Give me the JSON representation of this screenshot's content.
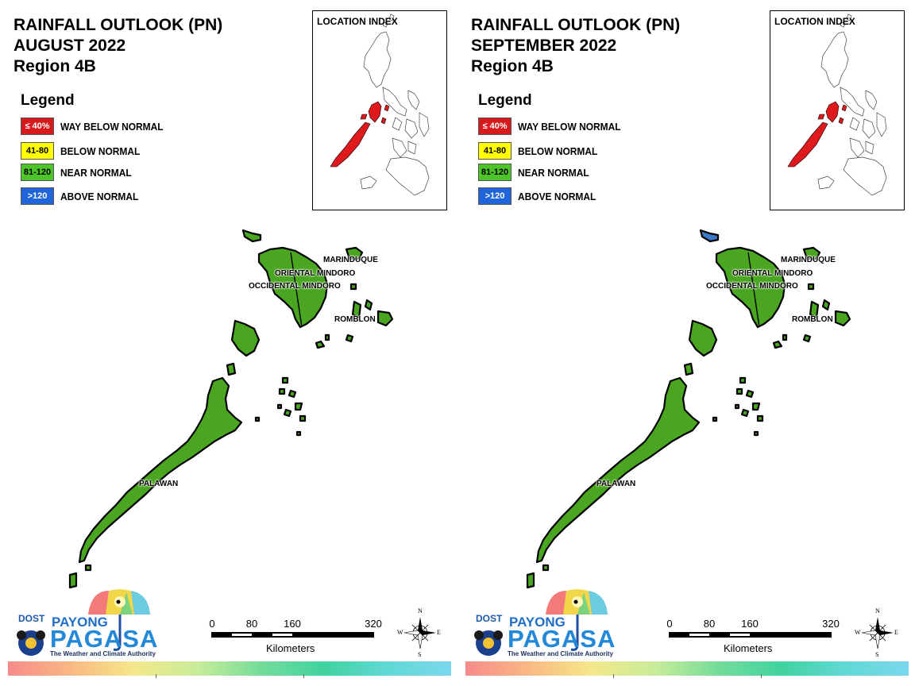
{
  "panels": [
    {
      "title_lines": [
        "RAINFALL OUTLOOK (PN)",
        "AUGUST 2022",
        "Region 4B"
      ],
      "legend": {
        "title": "Legend",
        "items": [
          {
            "swatch": "≤ 40%",
            "label": "WAY BELOW NORMAL",
            "color": "#d7191c",
            "text_color": "#ffffff"
          },
          {
            "swatch": "41-80",
            "label": "BELOW NORMAL",
            "color": "#ffff00",
            "text_color": "#000000"
          },
          {
            "swatch": "81-120",
            "label": "NEAR NORMAL",
            "color": "#4cc42a",
            "text_color": "#000000"
          },
          {
            "swatch": ">120",
            "label": "ABOVE NORMAL",
            "color": "#1f64d8",
            "text_color": "#ffffff"
          }
        ]
      },
      "inset_title": "LOCATION INDEX",
      "provinces": [
        {
          "name": "MARINDUQUE",
          "category": "NEAR NORMAL"
        },
        {
          "name": "ORIENTAL MINDORO",
          "category": "NEAR NORMAL"
        },
        {
          "name": "OCCIDENTAL MINDORO",
          "category": "NEAR NORMAL"
        },
        {
          "name": "ROMBLON",
          "category": "NEAR NORMAL"
        },
        {
          "name": "PALAWAN",
          "category": "NEAR NORMAL"
        }
      ],
      "scalebar": {
        "ticks": [
          "0",
          "80",
          "160",
          "320"
        ],
        "units": "Kilometers"
      },
      "compass": {
        "n": "N",
        "e": "E",
        "s": "S",
        "w": "W"
      },
      "logo": {
        "dost": "DOST",
        "payong": "PAYONG",
        "pagasa": "PAGASA",
        "tagline": "The Weather and Climate Authority"
      }
    },
    {
      "title_lines": [
        "RAINFALL OUTLOOK (PN)",
        "SEPTEMBER 2022",
        "Region 4B"
      ],
      "legend": {
        "title": "Legend",
        "items": [
          {
            "swatch": "≤ 40%",
            "label": "WAY BELOW NORMAL",
            "color": "#d7191c",
            "text_color": "#ffffff"
          },
          {
            "swatch": "41-80",
            "label": "BELOW NORMAL",
            "color": "#ffff00",
            "text_color": "#000000"
          },
          {
            "swatch": "81-120",
            "label": "NEAR NORMAL",
            "color": "#4cc42a",
            "text_color": "#000000"
          },
          {
            "swatch": ">120",
            "label": "ABOVE NORMAL",
            "color": "#1f64d8",
            "text_color": "#ffffff"
          }
        ]
      },
      "inset_title": "LOCATION INDEX",
      "provinces": [
        {
          "name": "MARINDUQUE",
          "category": "NEAR NORMAL"
        },
        {
          "name": "ORIENTAL MINDORO",
          "category": "NEAR NORMAL"
        },
        {
          "name": "OCCIDENTAL MINDORO",
          "category": "NEAR NORMAL"
        },
        {
          "name": "ROMBLON",
          "category": "NEAR NORMAL"
        },
        {
          "name": "PALAWAN",
          "category": "NEAR NORMAL"
        }
      ],
      "scalebar": {
        "ticks": [
          "0",
          "80",
          "160",
          "320"
        ],
        "units": "Kilometers"
      },
      "compass": {
        "n": "N",
        "e": "E",
        "s": "S",
        "w": "W"
      },
      "logo": {
        "dost": "DOST",
        "payong": "PAYONG",
        "pagasa": "PAGASA",
        "tagline": "The Weather and Climate Authority"
      }
    }
  ],
  "colors": {
    "region_highlight": "#e0191c",
    "near_normal_fill": "#4aa520",
    "above_normal_fill": "#3a78c8",
    "outline": "#000000"
  }
}
